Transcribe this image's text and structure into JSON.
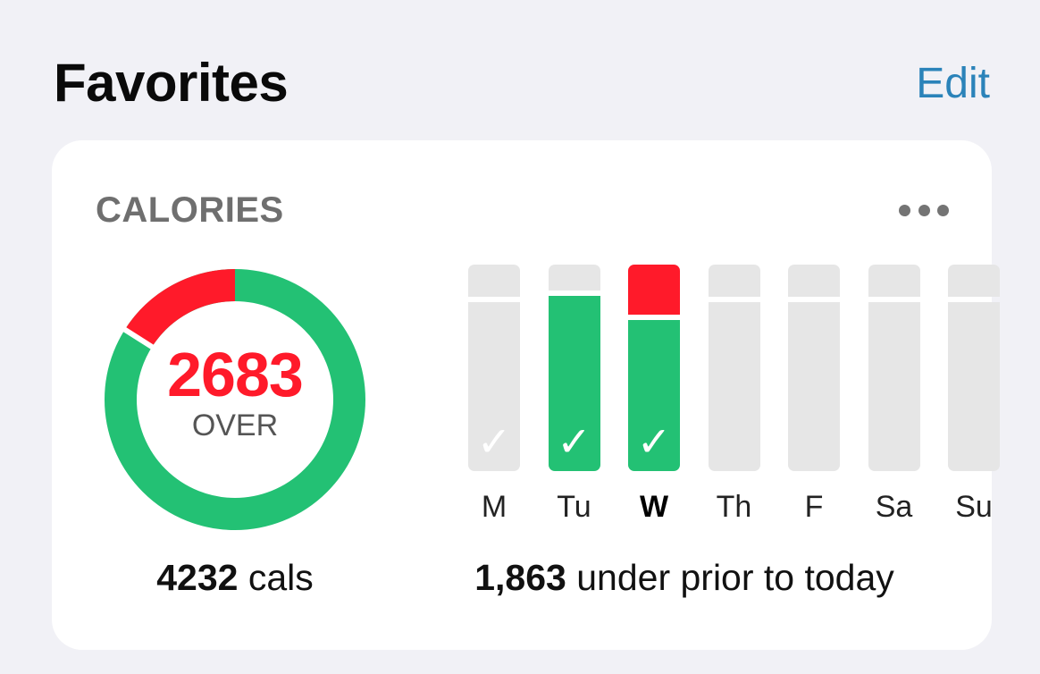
{
  "header": {
    "title": "Favorites",
    "edit_label": "Edit"
  },
  "card": {
    "title": "CALORIES",
    "more_icon": "ellipsis-icon",
    "ring": {
      "value": "2683",
      "label": "OVER",
      "over_fraction": 0.16,
      "colors": {
        "under": "#23c174",
        "over": "#ff1a2a"
      }
    },
    "week": {
      "days": [
        {
          "label": "M",
          "fill": 0.0,
          "over": 0.0,
          "check": "✓",
          "today": false
        },
        {
          "label": "Tu",
          "fill": 0.85,
          "over": 0.0,
          "check": "✓",
          "today": false
        },
        {
          "label": "W",
          "fill": 0.73,
          "over": 0.27,
          "check": "✓",
          "today": true
        },
        {
          "label": "Th",
          "fill": 0.0,
          "over": 0.0,
          "check": "",
          "today": false
        },
        {
          "label": "F",
          "fill": 0.0,
          "over": 0.0,
          "check": "",
          "today": false
        },
        {
          "label": "Sa",
          "fill": 0.0,
          "over": 0.0,
          "check": "",
          "today": false
        },
        {
          "label": "Su",
          "fill": 0.0,
          "over": 0.0,
          "check": "",
          "today": false
        }
      ],
      "goal_line": 0.83
    },
    "total": {
      "value": "4232",
      "unit": "cals"
    },
    "summary": {
      "value": "1,863",
      "text": "under prior to today"
    }
  },
  "colors": {
    "accent": "#2b83b9",
    "green": "#23c174",
    "red": "#ff1a2a",
    "empty": "#e6e6e6"
  }
}
